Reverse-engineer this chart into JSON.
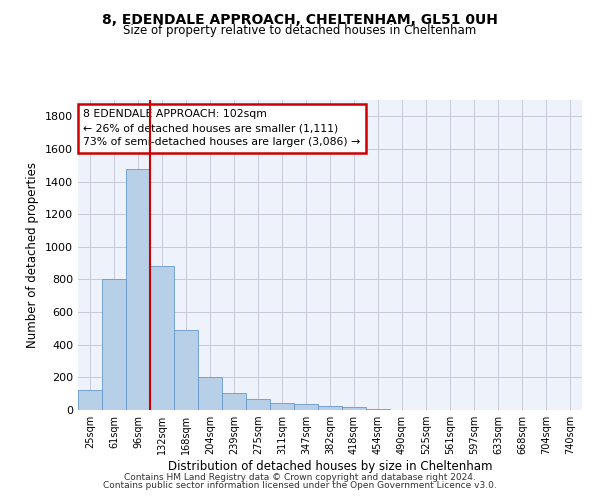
{
  "title1": "8, EDENDALE APPROACH, CHELTENHAM, GL51 0UH",
  "title2": "Size of property relative to detached houses in Cheltenham",
  "xlabel": "Distribution of detached houses by size in Cheltenham",
  "ylabel": "Number of detached properties",
  "categories": [
    "25sqm",
    "61sqm",
    "96sqm",
    "132sqm",
    "168sqm",
    "204sqm",
    "239sqm",
    "275sqm",
    "311sqm",
    "347sqm",
    "382sqm",
    "418sqm",
    "454sqm",
    "490sqm",
    "525sqm",
    "561sqm",
    "597sqm",
    "633sqm",
    "668sqm",
    "704sqm",
    "740sqm"
  ],
  "values": [
    125,
    800,
    1480,
    880,
    490,
    205,
    105,
    65,
    45,
    35,
    25,
    18,
    5,
    2,
    2,
    2,
    2,
    0,
    0,
    0,
    0
  ],
  "bar_color": "#b8cfe8",
  "bar_edgecolor": "#6699cc",
  "vline_index": 2,
  "vline_color": "#cc0000",
  "annotation_text": "8 EDENDALE APPROACH: 102sqm\n← 26% of detached houses are smaller (1,111)\n73% of semi-detached houses are larger (3,086) →",
  "annotation_box_facecolor": "#ffffff",
  "annotation_box_edgecolor": "#cc0000",
  "ylim": [
    0,
    1900
  ],
  "yticks": [
    0,
    200,
    400,
    600,
    800,
    1000,
    1200,
    1400,
    1600,
    1800
  ],
  "footer1": "Contains HM Land Registry data © Crown copyright and database right 2024.",
  "footer2": "Contains public sector information licensed under the Open Government Licence v3.0.",
  "background_color": "#eef2fb",
  "grid_color": "#c8c8d8"
}
